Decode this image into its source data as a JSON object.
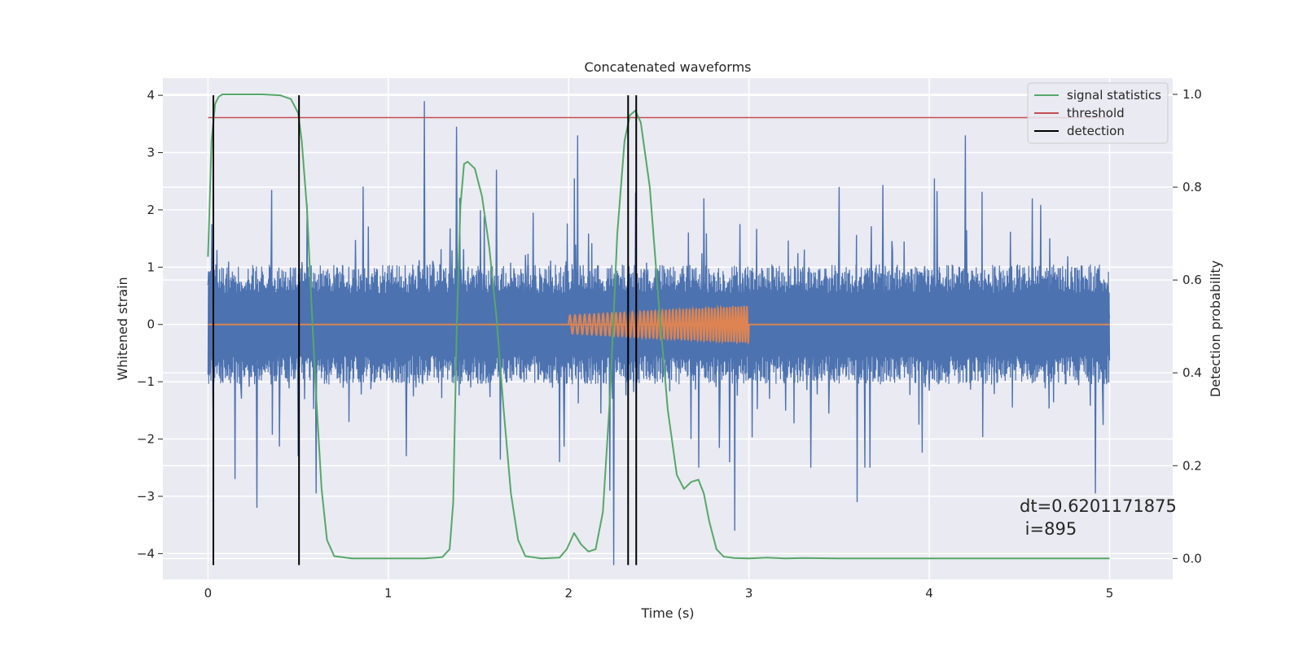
{
  "chart_data": {
    "type": "line",
    "title": "Concatenated waveforms",
    "xlabel": "Time (s)",
    "ylabel_left": "Whitened strain",
    "ylabel_right": "Detection probability",
    "xlim": [
      -0.25,
      5.35
    ],
    "ylim_left": [
      -4.45,
      4.3
    ],
    "ylim_right": [
      -0.045,
      1.035
    ],
    "x_ticks": [
      0,
      1,
      2,
      3,
      4,
      5
    ],
    "x_tick_labels": [
      "0",
      "1",
      "2",
      "3",
      "4",
      "5"
    ],
    "y_left_ticks": [
      -4,
      -3,
      -2,
      -1,
      0,
      1,
      2,
      3,
      4
    ],
    "y_left_tick_labels": [
      "−4",
      "−3",
      "−2",
      "−1",
      "0",
      "1",
      "2",
      "3",
      "4"
    ],
    "y_right_ticks": [
      0.0,
      0.2,
      0.4,
      0.6,
      0.8,
      1.0
    ],
    "y_right_tick_labels": [
      "0.0",
      "0.2",
      "0.4",
      "0.6",
      "0.8",
      "1.0"
    ],
    "grid": true,
    "legend_position": "top-right",
    "legend": [
      {
        "label": "signal statistics",
        "color": "#55a868"
      },
      {
        "label": "threshold",
        "color": "#c44e52"
      },
      {
        "label": "detection",
        "color": "#000000"
      }
    ],
    "series": [
      {
        "name": "whitened strain noise",
        "axis": "left",
        "color": "#4c72b0",
        "x_range": [
          0,
          5
        ],
        "typical_envelope": [
          -1.0,
          1.0
        ],
        "peaks": [
          {
            "x": 0.02,
            "y": 1.75
          },
          {
            "x": 0.03,
            "y": -1.75
          },
          {
            "x": 0.5,
            "y": -2.3
          },
          {
            "x": 0.55,
            "y": 2.1
          },
          {
            "x": 0.6,
            "y": -2.95
          },
          {
            "x": 0.15,
            "y": -2.7
          },
          {
            "x": 0.27,
            "y": -3.2
          },
          {
            "x": 1.1,
            "y": -2.3
          },
          {
            "x": 1.2,
            "y": 3.9
          },
          {
            "x": 1.38,
            "y": 3.45
          },
          {
            "x": 1.6,
            "y": 2.7
          },
          {
            "x": 2.05,
            "y": 3.3
          },
          {
            "x": 2.23,
            "y": -2.9
          },
          {
            "x": 2.25,
            "y": -4.2
          },
          {
            "x": 2.37,
            "y": 2.3
          },
          {
            "x": 2.68,
            "y": -2.0
          },
          {
            "x": 2.75,
            "y": 2.2
          },
          {
            "x": 2.92,
            "y": -3.6
          },
          {
            "x": 3.5,
            "y": 2.4
          },
          {
            "x": 3.6,
            "y": -3.1
          },
          {
            "x": 4.2,
            "y": -2.85
          },
          {
            "x": 4.2,
            "y": 3.3
          },
          {
            "x": 4.57,
            "y": 2.2
          },
          {
            "x": 4.92,
            "y": -2.95
          }
        ]
      },
      {
        "name": "injected waveform",
        "axis": "left",
        "color": "#dd8452",
        "chirp": {
          "start": 2.0,
          "end": 3.0,
          "amp_start": 0.16,
          "amp_end": 0.32,
          "cycles": 50
        },
        "flat_value": 0
      },
      {
        "name": "signal statistics",
        "axis": "right",
        "color": "#55a868",
        "x": [
          0,
          0.02,
          0.04,
          0.06,
          0.08,
          0.1,
          0.2,
          0.3,
          0.4,
          0.46,
          0.5,
          0.52,
          0.55,
          0.58,
          0.6,
          0.63,
          0.66,
          0.7,
          0.8,
          1.0,
          1.2,
          1.3,
          1.34,
          1.36,
          1.38,
          1.4,
          1.42,
          1.44,
          1.48,
          1.52,
          1.56,
          1.6,
          1.64,
          1.68,
          1.72,
          1.76,
          1.85,
          1.95,
          1.99,
          2.03,
          2.07,
          2.11,
          2.15,
          2.19,
          2.23,
          2.27,
          2.31,
          2.34,
          2.37,
          2.4,
          2.45,
          2.5,
          2.55,
          2.6,
          2.64,
          2.68,
          2.72,
          2.75,
          2.78,
          2.82,
          2.86,
          2.92,
          3.0,
          3.1,
          3.2,
          3.3,
          3.5,
          4.0,
          4.5,
          5.0
        ],
        "y": [
          0.65,
          0.9,
          0.98,
          0.995,
          1.0,
          1.0,
          1.0,
          1.0,
          0.998,
          0.99,
          0.96,
          0.9,
          0.75,
          0.5,
          0.35,
          0.15,
          0.04,
          0.005,
          0.0,
          0.0,
          0.0,
          0.003,
          0.02,
          0.12,
          0.5,
          0.76,
          0.85,
          0.855,
          0.84,
          0.78,
          0.67,
          0.52,
          0.32,
          0.14,
          0.04,
          0.005,
          0.0,
          0.002,
          0.02,
          0.055,
          0.03,
          0.015,
          0.02,
          0.1,
          0.35,
          0.7,
          0.9,
          0.955,
          0.965,
          0.94,
          0.8,
          0.55,
          0.32,
          0.18,
          0.15,
          0.165,
          0.17,
          0.14,
          0.08,
          0.02,
          0.004,
          0.001,
          0.0,
          0.002,
          0.0,
          0.001,
          0.0,
          0.0,
          0.0,
          0.0
        ]
      },
      {
        "name": "threshold",
        "axis": "right",
        "color": "#c44e52",
        "x": [
          0,
          5
        ],
        "y": [
          0.95,
          0.95
        ]
      }
    ],
    "detections": {
      "color": "#000000",
      "x": [
        0.03,
        0.505,
        2.33,
        2.375
      ],
      "y_range": [
        -4.2,
        4.0
      ]
    },
    "annotation_lines": [
      "dt=0.6201171875",
      " i=895"
    ]
  }
}
